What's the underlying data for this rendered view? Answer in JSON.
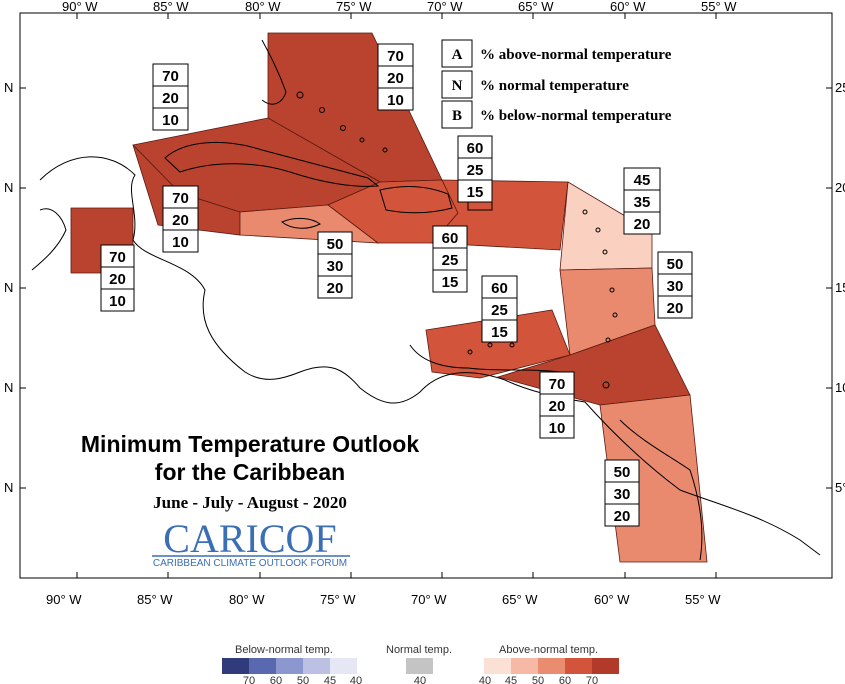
{
  "map": {
    "lon_labels": [
      "90° W",
      "85° W",
      "80° W",
      "75° W",
      "70° W",
      "65° W",
      "60° W",
      "55° W"
    ],
    "lat_labels_left": [
      "N",
      "N",
      "N",
      "N",
      "N"
    ],
    "lat_labels_right": [
      "25°",
      "20°",
      "15°",
      "10°",
      "5°"
    ]
  },
  "legend": {
    "items": [
      {
        "letter": "A",
        "text": "% above-normal temperature"
      },
      {
        "letter": "N",
        "text": "% normal temperature"
      },
      {
        "letter": "B",
        "text": "% below-normal temperature"
      }
    ]
  },
  "title": {
    "line1": "Minimum Temperature Outlook",
    "line2": "for the Caribbean",
    "period": "June - July - August - 2020"
  },
  "logo": {
    "name": "CARICOF",
    "subtitle": "CARIBBEAN CLIMATE OUTLOOK FORUM"
  },
  "regions": [
    {
      "name": "bahamas",
      "probs": [
        "70",
        "20",
        "10"
      ],
      "color": "#b9432f"
    },
    {
      "name": "cuba",
      "probs": [
        "70",
        "20",
        "10"
      ],
      "color": "#b9432f"
    },
    {
      "name": "cayman",
      "probs": [
        "70",
        "20",
        "10"
      ],
      "color": "#b9432f"
    },
    {
      "name": "belize",
      "probs": [
        "70",
        "20",
        "10"
      ],
      "color": "#b9432f"
    },
    {
      "name": "jamaica",
      "probs": [
        "50",
        "30",
        "20"
      ],
      "color": "#e98a6f"
    },
    {
      "name": "hispaniola",
      "probs": [
        "60",
        "25",
        "15"
      ],
      "color": "#d2553b"
    },
    {
      "name": "puerto-rico",
      "probs": [
        "60",
        "25",
        "15"
      ],
      "color": "#d2553b"
    },
    {
      "name": "leeward-islands",
      "probs": [
        "45",
        "35",
        "20"
      ],
      "color": "#fad1c1"
    },
    {
      "name": "windward-islands",
      "probs": [
        "50",
        "30",
        "20"
      ],
      "color": "#e98a6f"
    },
    {
      "name": "abc-islands",
      "probs": [
        "60",
        "25",
        "15"
      ],
      "color": "#d2553b"
    },
    {
      "name": "trinidad",
      "probs": [
        "70",
        "20",
        "10"
      ],
      "color": "#b9432f"
    },
    {
      "name": "guianas",
      "probs": [
        "50",
        "30",
        "20"
      ],
      "color": "#e98a6f"
    }
  ],
  "colorbar": {
    "below_label": "Below-normal temp.",
    "normal_label": "Normal temp.",
    "above_label": "Above-normal temp.",
    "below_ticks": [
      "70",
      "60",
      "50",
      "45",
      "40"
    ],
    "normal_ticks": [
      "40"
    ],
    "above_ticks": [
      "40",
      "45",
      "50",
      "60",
      "70"
    ],
    "below_colors": [
      "#2f3b7a",
      "#5a68b0",
      "#8c96cf",
      "#bcc1e4",
      "#e5e7f4"
    ],
    "normal_color": "#c4c4c4",
    "above_colors": [
      "#fbe0d6",
      "#f6b9a5",
      "#ea8c70",
      "#d2553b",
      "#b23a2a"
    ]
  }
}
